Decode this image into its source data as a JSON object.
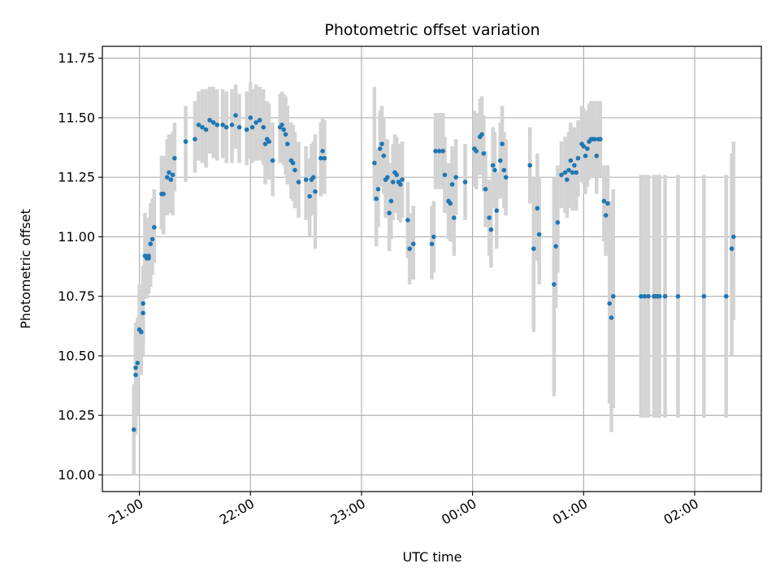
{
  "chart_data": {
    "type": "scatter",
    "title": "Photometric offset variation",
    "xlabel": "UTC time",
    "ylabel": "Photometric offset",
    "xlim": [
      "20:40",
      "02:36"
    ],
    "ylim": [
      9.93,
      11.8
    ],
    "grid": true,
    "marker_color": "#1f77b4",
    "errorbar_color": "#d3d3d3",
    "x_ticks": [
      "21:00",
      "22:00",
      "23:00",
      "00:00",
      "01:00",
      "02:00"
    ],
    "y_ticks": [
      "10.00",
      "10.25",
      "10.50",
      "10.75",
      "11.00",
      "11.25",
      "11.50",
      "11.75"
    ],
    "points": [
      [
        "20:57",
        10.19,
        10.0,
        10.38
      ],
      [
        "20:58",
        10.42,
        10.17,
        10.6
      ],
      [
        "20:58",
        10.45,
        10.22,
        10.64
      ],
      [
        "20:59",
        10.47,
        10.25,
        10.66
      ],
      [
        "21:00",
        10.61,
        10.42,
        10.8
      ],
      [
        "21:01",
        10.6,
        10.42,
        10.78
      ],
      [
        "21:02",
        10.68,
        10.5,
        10.87
      ],
      [
        "21:02",
        10.72,
        10.56,
        10.88
      ],
      [
        "21:03",
        10.92,
        10.74,
        11.1
      ],
      [
        "21:04",
        10.91,
        10.74,
        11.08
      ],
      [
        "21:05",
        10.91,
        10.76,
        11.06
      ],
      [
        "21:05",
        10.92,
        10.77,
        11.08
      ],
      [
        "21:06",
        10.97,
        10.79,
        11.14
      ],
      [
        "21:07",
        10.99,
        10.84,
        11.16
      ],
      [
        "21:08",
        11.04,
        10.89,
        11.2
      ],
      [
        "21:12",
        11.18,
        11.03,
        11.34
      ],
      [
        "21:13",
        11.18,
        11.01,
        11.34
      ],
      [
        "21:15",
        11.25,
        11.09,
        11.41
      ],
      [
        "21:16",
        11.27,
        11.12,
        11.43
      ],
      [
        "21:17",
        11.24,
        11.1,
        11.42
      ],
      [
        "21:18",
        11.26,
        11.09,
        11.44
      ],
      [
        "21:19",
        11.33,
        11.19,
        11.48
      ],
      [
        "21:25",
        11.4,
        11.23,
        11.55
      ],
      [
        "21:30",
        11.41,
        11.27,
        11.57
      ],
      [
        "21:32",
        11.47,
        11.32,
        11.61
      ],
      [
        "21:34",
        11.46,
        11.31,
        11.62
      ],
      [
        "21:36",
        11.45,
        11.29,
        11.62
      ],
      [
        "21:38",
        11.49,
        11.35,
        11.63
      ],
      [
        "21:40",
        11.48,
        11.33,
        11.63
      ],
      [
        "21:42",
        11.47,
        11.32,
        11.62
      ],
      [
        "21:45",
        11.47,
        11.33,
        11.62
      ],
      [
        "21:47",
        11.46,
        11.31,
        11.61
      ],
      [
        "21:50",
        11.47,
        11.31,
        11.62
      ],
      [
        "21:52",
        11.51,
        11.37,
        11.64
      ],
      [
        "21:54",
        11.46,
        11.31,
        11.6
      ],
      [
        "21:58",
        11.45,
        11.3,
        11.61
      ],
      [
        "22:00",
        11.5,
        11.33,
        11.65
      ],
      [
        "22:01",
        11.46,
        11.31,
        11.62
      ],
      [
        "22:03",
        11.48,
        11.32,
        11.64
      ],
      [
        "22:05",
        11.49,
        11.32,
        11.63
      ],
      [
        "22:07",
        11.46,
        11.3,
        11.62
      ],
      [
        "22:08",
        11.39,
        11.22,
        11.55
      ],
      [
        "22:09",
        11.41,
        11.25,
        11.57
      ],
      [
        "22:10",
        11.4,
        11.24,
        11.56
      ],
      [
        "22:12",
        11.32,
        11.17,
        11.48
      ],
      [
        "22:16",
        11.46,
        11.31,
        11.6
      ],
      [
        "22:17",
        11.47,
        11.32,
        11.61
      ],
      [
        "22:18",
        11.45,
        11.3,
        11.6
      ],
      [
        "22:19",
        11.43,
        11.26,
        11.59
      ],
      [
        "22:20",
        11.39,
        11.22,
        11.55
      ],
      [
        "22:22",
        11.32,
        11.16,
        11.48
      ],
      [
        "22:23",
        11.31,
        11.15,
        11.47
      ],
      [
        "22:24",
        11.28,
        11.12,
        11.44
      ],
      [
        "22:26",
        11.23,
        11.08,
        11.4
      ],
      [
        "22:30",
        11.24,
        11.07,
        11.38
      ],
      [
        "22:32",
        11.17,
        11.0,
        11.33
      ],
      [
        "22:33",
        11.24,
        11.09,
        11.39
      ],
      [
        "22:34",
        11.25,
        11.1,
        11.4
      ],
      [
        "22:35",
        11.19,
        10.95,
        11.43
      ],
      [
        "22:38",
        11.33,
        11.17,
        11.48
      ],
      [
        "22:39",
        11.36,
        11.19,
        11.5
      ],
      [
        "22:40",
        11.33,
        11.18,
        11.49
      ],
      [
        "23:07",
        11.31,
        11.15,
        11.63
      ],
      [
        "23:08",
        11.16,
        10.96,
        11.37
      ],
      [
        "23:09",
        11.2,
        11.04,
        11.36
      ],
      [
        "23:10",
        11.37,
        11.21,
        11.53
      ],
      [
        "23:11",
        11.39,
        11.24,
        11.55
      ],
      [
        "23:12",
        11.34,
        11.18,
        11.5
      ],
      [
        "23:13",
        11.24,
        11.08,
        11.4
      ],
      [
        "23:14",
        11.25,
        11.1,
        11.41
      ],
      [
        "23:15",
        11.1,
        10.94,
        11.26
      ],
      [
        "23:16",
        11.15,
        10.99,
        11.31
      ],
      [
        "23:17",
        11.23,
        11.07,
        11.39
      ],
      [
        "23:18",
        11.27,
        11.12,
        11.43
      ],
      [
        "23:19",
        11.26,
        11.1,
        11.42
      ],
      [
        "23:20",
        11.23,
        11.07,
        11.39
      ],
      [
        "23:21",
        11.22,
        11.06,
        11.38
      ],
      [
        "23:22",
        11.24,
        11.08,
        11.4
      ],
      [
        "23:25",
        11.07,
        10.91,
        11.23
      ],
      [
        "23:26",
        10.95,
        10.8,
        11.1
      ],
      [
        "23:28",
        10.97,
        10.82,
        11.13
      ],
      [
        "23:38",
        10.97,
        10.82,
        11.13
      ],
      [
        "23:39",
        11.0,
        10.85,
        11.15
      ],
      [
        "23:40",
        11.36,
        11.2,
        11.52
      ],
      [
        "23:42",
        11.36,
        11.2,
        11.52
      ],
      [
        "23:44",
        11.36,
        11.2,
        11.52
      ],
      [
        "23:45",
        11.26,
        11.1,
        11.42
      ],
      [
        "23:47",
        11.15,
        10.99,
        11.31
      ],
      [
        "23:48",
        11.14,
        10.98,
        11.3
      ],
      [
        "23:49",
        11.22,
        11.06,
        11.38
      ],
      [
        "23:50",
        11.08,
        10.92,
        11.24
      ],
      [
        "23:51",
        11.25,
        11.09,
        11.41
      ],
      [
        "23:56",
        11.23,
        11.07,
        11.39
      ],
      [
        "00:01",
        11.37,
        11.21,
        11.53
      ],
      [
        "00:02",
        11.36,
        11.2,
        11.52
      ],
      [
        "00:04",
        11.42,
        11.26,
        11.58
      ],
      [
        "00:05",
        11.43,
        11.27,
        11.59
      ],
      [
        "00:06",
        11.35,
        11.19,
        11.51
      ],
      [
        "00:07",
        11.2,
        11.04,
        11.36
      ],
      [
        "00:09",
        11.08,
        10.92,
        11.24
      ],
      [
        "00:10",
        11.03,
        10.87,
        11.19
      ],
      [
        "00:11",
        11.3,
        11.14,
        11.46
      ],
      [
        "00:12",
        11.28,
        11.12,
        11.44
      ],
      [
        "00:13",
        11.11,
        10.95,
        11.27
      ],
      [
        "00:15",
        11.32,
        11.16,
        11.48
      ],
      [
        "00:16",
        11.39,
        11.23,
        11.55
      ],
      [
        "00:17",
        11.28,
        11.12,
        11.44
      ],
      [
        "00:18",
        11.25,
        11.09,
        11.41
      ],
      [
        "00:31",
        11.3,
        11.14,
        11.46
      ],
      [
        "00:33",
        10.95,
        10.6,
        11.25
      ],
      [
        "00:35",
        11.12,
        10.9,
        11.35
      ],
      [
        "00:36",
        11.01,
        10.8,
        11.25
      ],
      [
        "00:44",
        10.8,
        10.33,
        11.25
      ],
      [
        "00:45",
        10.96,
        10.7,
        11.25
      ],
      [
        "00:46",
        11.06,
        10.85,
        11.3
      ],
      [
        "00:48",
        11.26,
        11.12,
        11.4
      ],
      [
        "00:50",
        11.27,
        11.1,
        11.42
      ],
      [
        "00:51",
        11.24,
        11.08,
        11.4
      ],
      [
        "00:52",
        11.28,
        11.12,
        11.44
      ],
      [
        "00:53",
        11.32,
        11.16,
        11.48
      ],
      [
        "00:54",
        11.27,
        11.11,
        11.43
      ],
      [
        "00:55",
        11.3,
        11.14,
        11.46
      ],
      [
        "00:56",
        11.27,
        11.11,
        11.43
      ],
      [
        "00:57",
        11.33,
        11.17,
        11.49
      ],
      [
        "00:59",
        11.39,
        11.23,
        11.55
      ],
      [
        "01:00",
        11.38,
        11.22,
        11.54
      ],
      [
        "01:01",
        11.34,
        11.18,
        11.5
      ],
      [
        "01:02",
        11.37,
        11.21,
        11.53
      ],
      [
        "01:03",
        11.4,
        11.24,
        11.56
      ],
      [
        "01:04",
        11.41,
        11.25,
        11.57
      ],
      [
        "01:05",
        11.41,
        11.25,
        11.57
      ],
      [
        "01:06",
        11.41,
        11.25,
        11.57
      ],
      [
        "01:07",
        11.34,
        11.18,
        11.5
      ],
      [
        "01:08",
        11.41,
        11.25,
        11.57
      ],
      [
        "01:09",
        11.41,
        11.25,
        11.57
      ],
      [
        "01:11",
        11.15,
        10.98,
        11.3
      ],
      [
        "01:12",
        11.09,
        10.92,
        11.26
      ],
      [
        "01:13",
        11.14,
        10.97,
        11.3
      ],
      [
        "01:14",
        10.72,
        10.3,
        11.15
      ],
      [
        "01:15",
        10.66,
        10.18,
        11.1
      ],
      [
        "01:16",
        10.75,
        10.28,
        11.2
      ],
      [
        "01:31",
        10.75,
        10.24,
        11.26
      ],
      [
        "01:33",
        10.75,
        10.24,
        11.26
      ],
      [
        "01:35",
        10.75,
        10.24,
        11.26
      ],
      [
        "01:38",
        10.75,
        10.24,
        11.26
      ],
      [
        "01:39",
        10.75,
        10.24,
        11.26
      ],
      [
        "01:40",
        10.75,
        10.24,
        11.26
      ],
      [
        "01:41",
        10.75,
        10.24,
        11.26
      ],
      [
        "01:44",
        10.75,
        10.24,
        11.26
      ],
      [
        "01:51",
        10.75,
        10.24,
        11.26
      ],
      [
        "02:05",
        10.75,
        10.24,
        11.26
      ],
      [
        "02:17",
        10.75,
        10.24,
        11.26
      ],
      [
        "02:20",
        10.95,
        10.5,
        11.35
      ],
      [
        "02:21",
        11.0,
        10.65,
        11.4
      ]
    ]
  }
}
